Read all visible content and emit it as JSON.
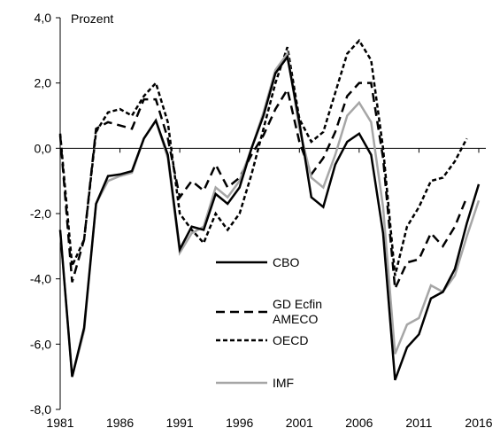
{
  "chart_data": {
    "type": "line",
    "y_label": "Prozent",
    "x": [
      1981,
      1982,
      1983,
      1984,
      1985,
      1986,
      1987,
      1988,
      1989,
      1990,
      1991,
      1992,
      1993,
      1994,
      1995,
      1996,
      1997,
      1998,
      1999,
      2000,
      2001,
      2002,
      2003,
      2004,
      2005,
      2006,
      2007,
      2008,
      2009,
      2010,
      2011,
      2012,
      2013,
      2014,
      2015,
      2016
    ],
    "xlim": [
      1981,
      2016
    ],
    "xticks": [
      1981,
      1986,
      1991,
      1996,
      2001,
      2006,
      2011,
      2016
    ],
    "ylim": [
      -8,
      4
    ],
    "yticks": [
      {
        "value": -8,
        "label": "-8,0"
      },
      {
        "value": -6,
        "label": "-6,0"
      },
      {
        "value": -4,
        "label": "-4,0"
      },
      {
        "value": -2,
        "label": "-2,0"
      },
      {
        "value": 0,
        "label": "0,0"
      },
      {
        "value": 2,
        "label": "2,0"
      },
      {
        "value": 4,
        "label": "4,0"
      }
    ],
    "series": [
      {
        "name": "CBO",
        "color": "#000000",
        "dash": "solid",
        "values": [
          -2.5,
          -7.0,
          -5.5,
          -1.7,
          -0.85,
          -0.8,
          -0.7,
          0.3,
          0.85,
          -0.2,
          -3.1,
          -2.4,
          -2.5,
          -1.4,
          -1.7,
          -1.2,
          0.0,
          1.0,
          2.3,
          2.8,
          0.8,
          -1.5,
          -1.8,
          -0.5,
          0.2,
          0.45,
          -0.2,
          -2.6,
          -7.1,
          -6.1,
          -5.7,
          -4.6,
          -4.4,
          -3.7,
          -2.3,
          -1.1
        ]
      },
      {
        "name": "GD Ecfin AMECO",
        "color": "#000000",
        "dash": "long",
        "values": [
          0.4,
          -4.1,
          -2.8,
          0.6,
          0.8,
          0.7,
          0.6,
          1.5,
          1.5,
          0.3,
          -1.5,
          -1.0,
          -1.3,
          -0.5,
          -1.2,
          -0.9,
          -0.2,
          0.4,
          1.2,
          1.8,
          0.2,
          -0.8,
          -0.3,
          0.5,
          1.6,
          2.0,
          2.0,
          -0.3,
          -4.3,
          -3.5,
          -3.4,
          -2.6,
          -3.0,
          -2.4,
          -1.5,
          null
        ]
      },
      {
        "name": "OECD",
        "color": "#000000",
        "dash": "short",
        "values": [
          0.45,
          -3.6,
          -2.8,
          0.5,
          1.1,
          1.2,
          1.0,
          1.6,
          2.0,
          0.8,
          -2.0,
          -2.5,
          -2.9,
          -2.0,
          -2.5,
          -2.0,
          -0.8,
          0.6,
          2.0,
          3.1,
          0.9,
          0.2,
          0.5,
          1.7,
          2.9,
          3.3,
          2.7,
          0.0,
          -3.9,
          -2.4,
          -1.8,
          -1.0,
          -0.9,
          -0.4,
          0.3,
          null
        ]
      },
      {
        "name": "IMF",
        "color": "#a6a6a6",
        "dash": "solid",
        "values": [
          -2.5,
          -7.0,
          -5.6,
          -1.7,
          -1.0,
          -0.85,
          -0.75,
          0.3,
          0.85,
          -0.3,
          -3.2,
          -2.6,
          -2.4,
          -1.2,
          -1.5,
          -1.0,
          0.0,
          1.1,
          2.4,
          2.9,
          0.6,
          -0.9,
          -1.2,
          -0.2,
          1.0,
          1.4,
          0.8,
          -1.8,
          -6.3,
          -5.4,
          -5.2,
          -4.2,
          -4.4,
          -3.9,
          -2.7,
          -1.6
        ]
      }
    ]
  }
}
